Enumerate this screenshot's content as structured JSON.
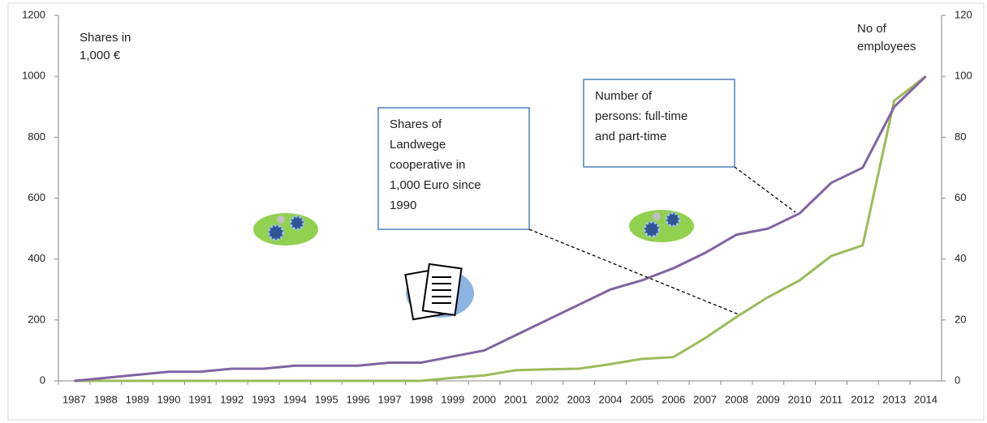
{
  "chart_data": {
    "type": "line",
    "categories": [
      "1987",
      "1988",
      "1989",
      "1990",
      "1991",
      "1992",
      "1993",
      "1994",
      "1995",
      "1996",
      "1997",
      "1998",
      "1999",
      "2000",
      "2001",
      "2002",
      "2003",
      "2004",
      "2005",
      "2006",
      "2007",
      "2008",
      "2009",
      "2010",
      "2011",
      "2012",
      "2013",
      "2014"
    ],
    "series": [
      {
        "color": "#9bbb59",
        "values": [
          0,
          0,
          0,
          0,
          0,
          0,
          0,
          0,
          0,
          0,
          0,
          0,
          10,
          18,
          35,
          38,
          40,
          55,
          72,
          78,
          140,
          210,
          275,
          330,
          410,
          445,
          920,
          1000
        ]
      },
      {
        "color": "#8064a2",
        "axis": "y2",
        "values": [
          0,
          1,
          2,
          3,
          3,
          4,
          4,
          5,
          5,
          5,
          6,
          6,
          8,
          10,
          15,
          20,
          25,
          30,
          33,
          37,
          42,
          48,
          50,
          55,
          65,
          70,
          90,
          100
        ]
      }
    ],
    "ylim": [
      0,
      1200
    ],
    "yticks": [
      0,
      200,
      400,
      600,
      800,
      1000,
      1200
    ],
    "y2lim": [
      0,
      120
    ],
    "y2ticks": [
      0,
      20,
      40,
      60,
      80,
      100,
      120
    ],
    "grid": false,
    "annotations": [
      {
        "lines": [
          "Shares in",
          "1,000 €"
        ]
      },
      {
        "lines": [
          "No of",
          "employees"
        ]
      },
      {
        "lines": [
          "Shares of",
          "Landwege",
          "cooperative in",
          "1,000 Euro since",
          "1990"
        ]
      },
      {
        "lines": [
          "Number of",
          "persons: full-time",
          "and part-time"
        ]
      }
    ]
  }
}
